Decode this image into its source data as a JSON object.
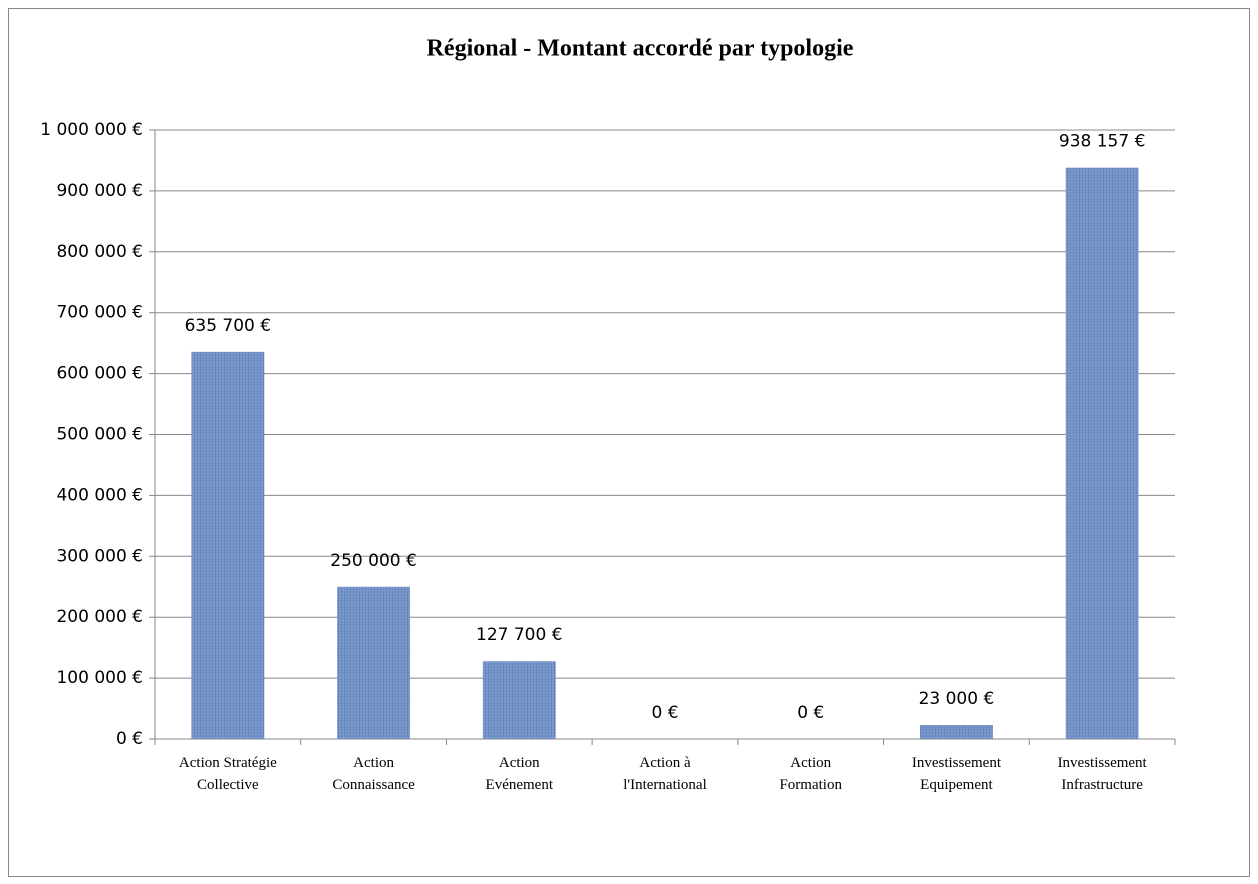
{
  "chart_data": {
    "type": "bar",
    "title": "Régional - Montant accordé par typologie",
    "categories": [
      [
        "Action Stratégie",
        "Collective"
      ],
      [
        "Action",
        "Connaissance"
      ],
      [
        "Action",
        "Evénement"
      ],
      [
        "Action à",
        "l'International"
      ],
      [
        "Action",
        "Formation"
      ],
      [
        "Investissement",
        "Equipement"
      ],
      [
        "Investissement",
        "Infrastructure"
      ]
    ],
    "values": [
      635700,
      250000,
      127700,
      0,
      0,
      23000,
      938157
    ],
    "value_labels": [
      "635 700 €",
      "250 000 €",
      "127 700 €",
      "0 €",
      "0 €",
      "23 000 €",
      "938 157 €"
    ],
    "color": "#6f8fc8",
    "ylim": [
      0,
      1000000
    ],
    "yticks": [
      {
        "value": 0,
        "label": "0 €"
      },
      {
        "value": 100000,
        "label": "100 000 €"
      },
      {
        "value": 200000,
        "label": "200 000 €"
      },
      {
        "value": 300000,
        "label": "300 000 €"
      },
      {
        "value": 400000,
        "label": "400 000 €"
      },
      {
        "value": 500000,
        "label": "500 000 €"
      },
      {
        "value": 600000,
        "label": "600 000 €"
      },
      {
        "value": 700000,
        "label": "700 000 €"
      },
      {
        "value": 800000,
        "label": "800 000 €"
      },
      {
        "value": 900000,
        "label": "900 000 €"
      },
      {
        "value": 1000000,
        "label": "1 000 000 €"
      }
    ],
    "grid": true
  }
}
